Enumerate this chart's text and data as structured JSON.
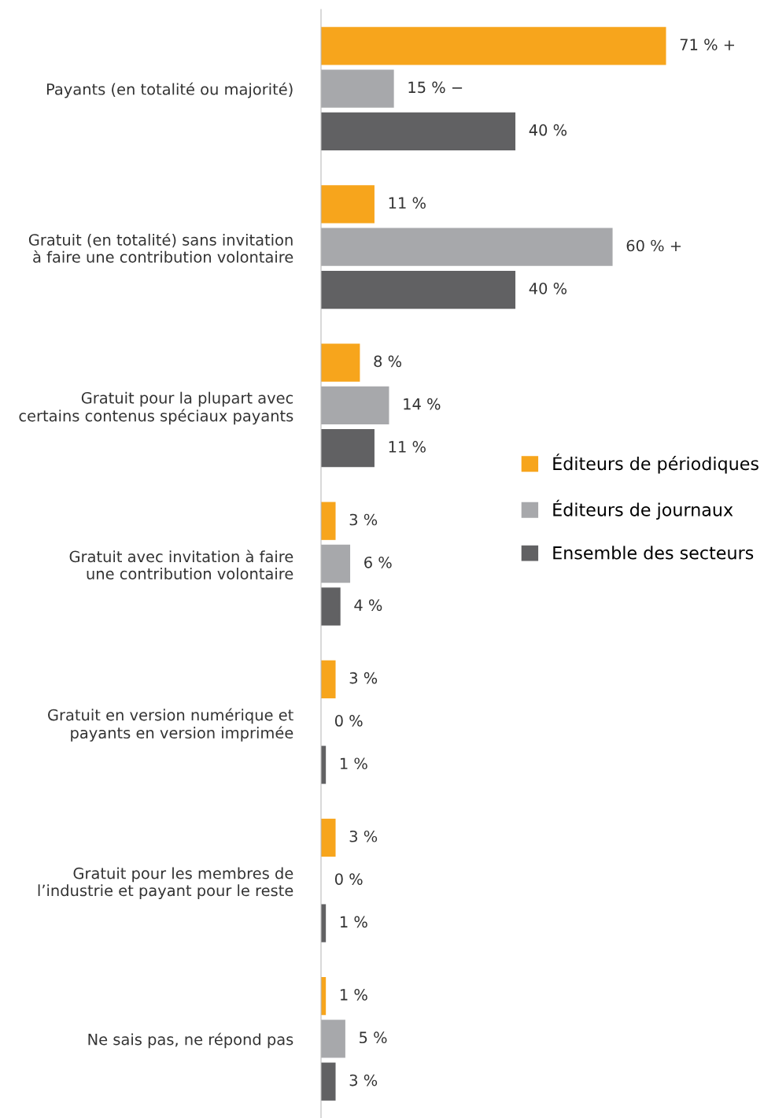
{
  "chart_data": {
    "type": "bar",
    "orientation": "horizontal",
    "categories": [
      "Payants (en totalité ou majorité)",
      "Gratuit (en totalité) sans invitation\nà faire une contribution volontaire",
      "Gratuit pour la plupart avec\ncertains contenus spéciaux payants",
      "Gratuit avec invitation à faire\nune contribution volontaire",
      "Gratuit en version numérique et\npayants en version imprimée",
      "Gratuit pour les membres de\nl’industrie et payant pour le reste",
      "Ne sais pas, ne répond pas"
    ],
    "series": [
      {
        "name": "Éditeurs de périodiques",
        "color": "#f7a51c",
        "values": [
          71,
          11,
          8,
          3,
          3,
          3,
          1
        ],
        "value_labels": [
          "71 % +",
          "11 %",
          "8 %",
          "3 %",
          "3 %",
          "3 %",
          "1 %"
        ]
      },
      {
        "name": "Éditeurs de journaux",
        "color": "#a7a8ab",
        "values": [
          15,
          60,
          14,
          6,
          0,
          0,
          5
        ],
        "value_labels": [
          "15 % −",
          "60 % +",
          "14 %",
          "6 %",
          "0 %",
          "0 %",
          "5 %"
        ]
      },
      {
        "name": "Ensemble des secteurs",
        "color": "#616163",
        "values": [
          40,
          40,
          11,
          4,
          1,
          1,
          3
        ],
        "value_labels": [
          "40 %",
          "40 %",
          "11 %",
          "4 %",
          "1 %",
          "1 %",
          "3 %"
        ]
      }
    ],
    "legend": "right",
    "grid": false
  }
}
